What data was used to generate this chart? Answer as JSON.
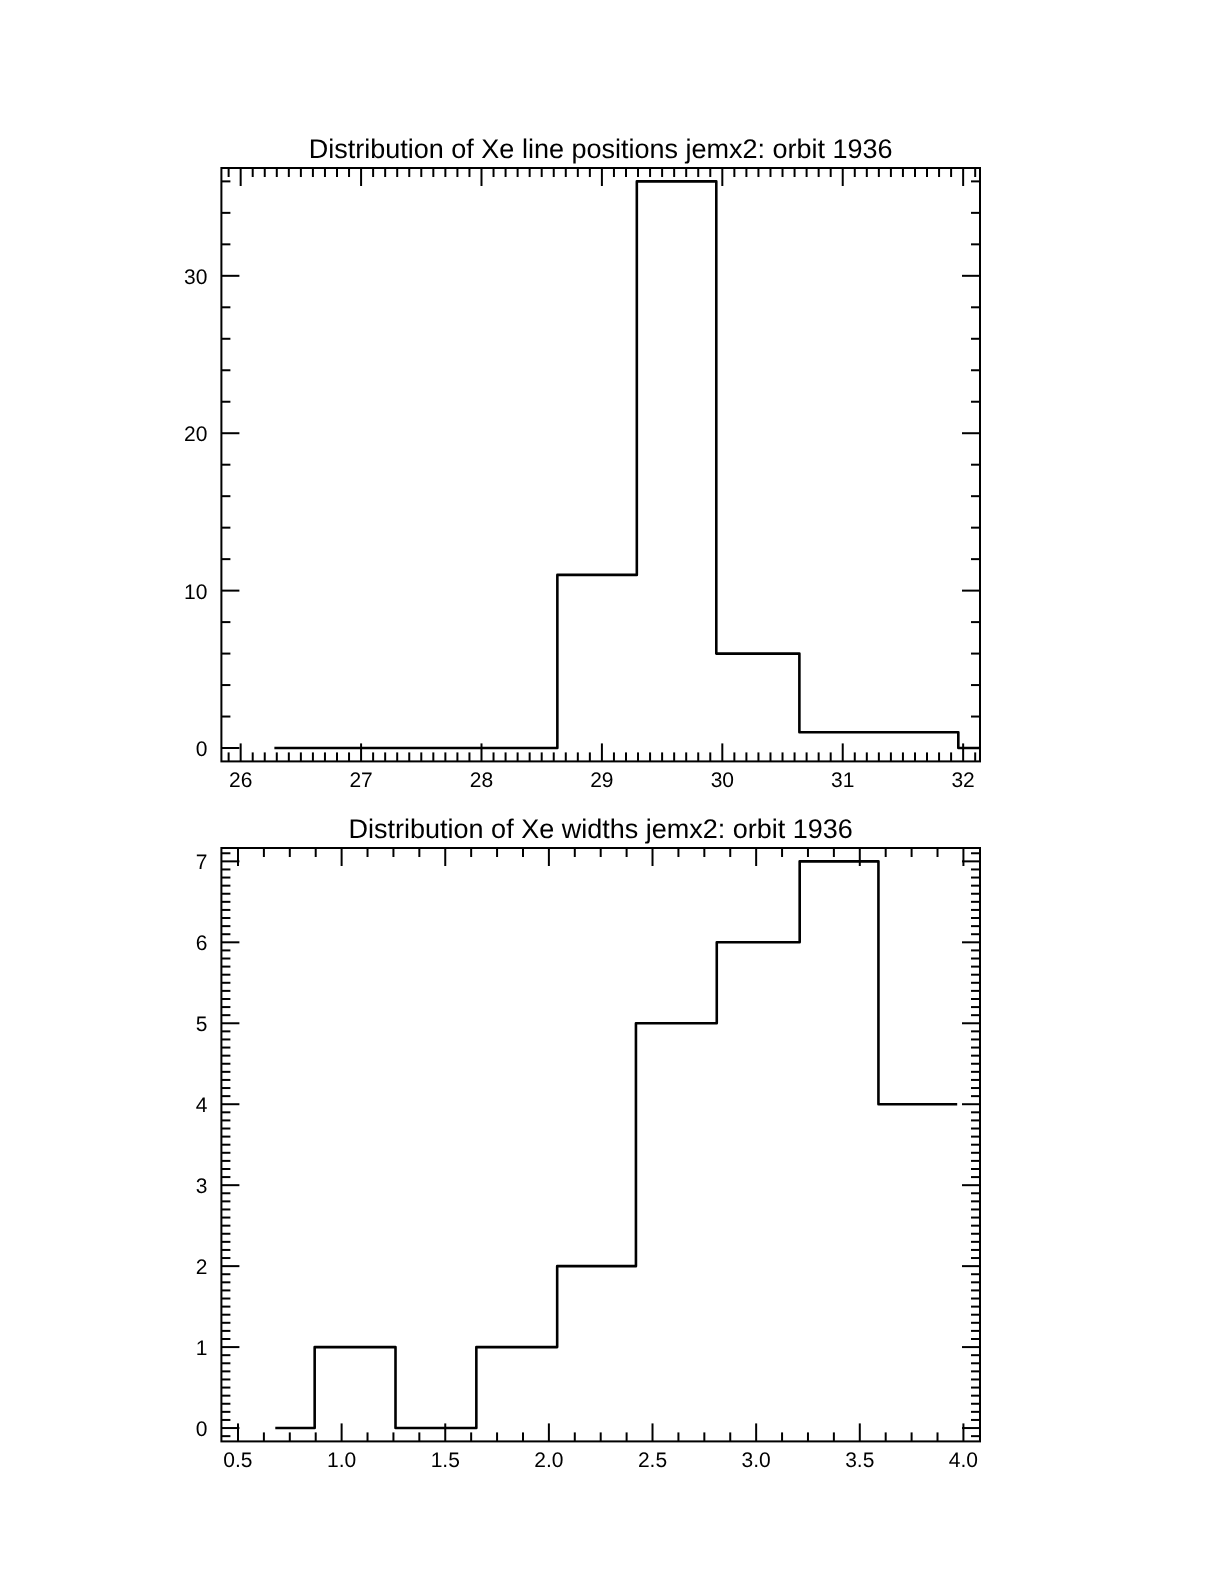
{
  "chart_data": [
    {
      "type": "step",
      "title": "Distribution of Xe line positions jemx2: orbit 1936",
      "color": "#000000",
      "x": [
        26.28,
        28.63,
        29.29,
        29.95,
        30.64,
        31.96,
        32.14
      ],
      "values": [
        0,
        11,
        36,
        6,
        1,
        0,
        0
      ],
      "xlim": [
        25.84,
        32.14
      ],
      "xticks": [
        {
          "value": 25.9,
          "label": null
        },
        26,
        {
          "value": 26.1,
          "label": null
        },
        {
          "value": 26.2,
          "label": null
        },
        {
          "value": 26.3,
          "label": null
        },
        {
          "value": 26.4,
          "label": null
        },
        {
          "value": 26.5,
          "label": null
        },
        {
          "value": 26.6,
          "label": null
        },
        {
          "value": 26.7,
          "label": null
        },
        {
          "value": 26.8,
          "label": null
        },
        {
          "value": 26.9,
          "label": null
        },
        27,
        {
          "value": 27.1,
          "label": null
        },
        {
          "value": 27.2,
          "label": null
        },
        {
          "value": 27.3,
          "label": null
        },
        {
          "value": 27.4,
          "label": null
        },
        {
          "value": 27.5,
          "label": null
        },
        {
          "value": 27.6,
          "label": null
        },
        {
          "value": 27.7,
          "label": null
        },
        {
          "value": 27.8,
          "label": null
        },
        {
          "value": 27.9,
          "label": null
        },
        28,
        {
          "value": 28.1,
          "label": null
        },
        {
          "value": 28.2,
          "label": null
        },
        {
          "value": 28.3,
          "label": null
        },
        {
          "value": 28.4,
          "label": null
        },
        {
          "value": 28.5,
          "label": null
        },
        {
          "value": 28.6,
          "label": null
        },
        {
          "value": 28.7,
          "label": null
        },
        {
          "value": 28.8,
          "label": null
        },
        {
          "value": 28.9,
          "label": null
        },
        29,
        {
          "value": 29.1,
          "label": null
        },
        {
          "value": 29.2,
          "label": null
        },
        {
          "value": 29.3,
          "label": null
        },
        {
          "value": 29.4,
          "label": null
        },
        {
          "value": 29.5,
          "label": null
        },
        {
          "value": 29.6,
          "label": null
        },
        {
          "value": 29.7,
          "label": null
        },
        {
          "value": 29.8,
          "label": null
        },
        {
          "value": 29.9,
          "label": null
        },
        30,
        {
          "value": 30.1,
          "label": null
        },
        {
          "value": 30.2,
          "label": null
        },
        {
          "value": 30.3,
          "label": null
        },
        {
          "value": 30.4,
          "label": null
        },
        {
          "value": 30.5,
          "label": null
        },
        {
          "value": 30.6,
          "label": null
        },
        {
          "value": 30.7,
          "label": null
        },
        {
          "value": 30.8,
          "label": null
        },
        {
          "value": 30.9,
          "label": null
        },
        31,
        {
          "value": 31.1,
          "label": null
        },
        {
          "value": 31.2,
          "label": null
        },
        {
          "value": 31.3,
          "label": null
        },
        {
          "value": 31.4,
          "label": null
        },
        {
          "value": 31.5,
          "label": null
        },
        {
          "value": 31.6,
          "label": null
        },
        {
          "value": 31.7,
          "label": null
        },
        {
          "value": 31.8,
          "label": null
        },
        {
          "value": 31.9,
          "label": null
        },
        32,
        {
          "value": 32.1,
          "label": null
        }
      ],
      "ylim": [
        -0.85,
        36.85
      ],
      "yticks": [
        0,
        {
          "value": 2,
          "label": null
        },
        {
          "value": 4,
          "label": null
        },
        {
          "value": 6,
          "label": null
        },
        {
          "value": 8,
          "label": null
        },
        10,
        {
          "value": 12,
          "label": null
        },
        {
          "value": 14,
          "label": null
        },
        {
          "value": 16,
          "label": null
        },
        {
          "value": 18,
          "label": null
        },
        20,
        {
          "value": 22,
          "label": null
        },
        {
          "value": 24,
          "label": null
        },
        {
          "value": 26,
          "label": null
        },
        {
          "value": 28,
          "label": null
        },
        30,
        {
          "value": 32,
          "label": null
        },
        {
          "value": 34,
          "label": null
        },
        {
          "value": 36,
          "label": null
        }
      ]
    },
    {
      "type": "step",
      "title": "Distribution of Xe widths jemx2: orbit 1936",
      "color": "#000000",
      "x": [
        0.68,
        0.87,
        1.26,
        1.65,
        2.04,
        2.42,
        2.81,
        3.21,
        3.59,
        3.97
      ],
      "values": [
        0,
        1,
        0,
        1,
        2,
        5,
        6,
        7,
        4,
        4
      ],
      "xlim": [
        0.42,
        4.08
      ],
      "xticks": [
        0.5,
        {
          "value": 0.625,
          "label": null
        },
        {
          "value": 0.75,
          "label": null
        },
        {
          "value": 0.875,
          "label": null
        },
        {
          "value": 1,
          "label": "1.0"
        },
        {
          "value": 1.125,
          "label": null
        },
        {
          "value": 1.25,
          "label": null
        },
        {
          "value": 1.375,
          "label": null
        },
        1.5,
        {
          "value": 1.625,
          "label": null
        },
        {
          "value": 1.75,
          "label": null
        },
        {
          "value": 1.875,
          "label": null
        },
        {
          "value": 2,
          "label": "2.0"
        },
        {
          "value": 2.125,
          "label": null
        },
        {
          "value": 2.25,
          "label": null
        },
        {
          "value": 2.375,
          "label": null
        },
        2.5,
        {
          "value": 2.625,
          "label": null
        },
        {
          "value": 2.75,
          "label": null
        },
        {
          "value": 2.875,
          "label": null
        },
        {
          "value": 3,
          "label": "3.0"
        },
        {
          "value": 3.125,
          "label": null
        },
        {
          "value": 3.25,
          "label": null
        },
        {
          "value": 3.375,
          "label": null
        },
        3.5,
        {
          "value": 3.625,
          "label": null
        },
        {
          "value": 3.75,
          "label": null
        },
        {
          "value": 3.875,
          "label": null
        },
        {
          "value": 4,
          "label": "4.0"
        }
      ],
      "ylim": [
        -0.165,
        7.165
      ],
      "yticks": [
        {
          "value": -0.1,
          "label": null
        },
        0,
        {
          "value": 0.1,
          "label": null
        },
        {
          "value": 0.2,
          "label": null
        },
        {
          "value": 0.3,
          "label": null
        },
        {
          "value": 0.4,
          "label": null
        },
        {
          "value": 0.5,
          "label": null
        },
        {
          "value": 0.6,
          "label": null
        },
        {
          "value": 0.7,
          "label": null
        },
        {
          "value": 0.8,
          "label": null
        },
        {
          "value": 0.9,
          "label": null
        },
        1,
        {
          "value": 1.1,
          "label": null
        },
        {
          "value": 1.2,
          "label": null
        },
        {
          "value": 1.3,
          "label": null
        },
        {
          "value": 1.4,
          "label": null
        },
        {
          "value": 1.5,
          "label": null
        },
        {
          "value": 1.6,
          "label": null
        },
        {
          "value": 1.7,
          "label": null
        },
        {
          "value": 1.8,
          "label": null
        },
        {
          "value": 1.9,
          "label": null
        },
        2,
        {
          "value": 2.1,
          "label": null
        },
        {
          "value": 2.2,
          "label": null
        },
        {
          "value": 2.3,
          "label": null
        },
        {
          "value": 2.4,
          "label": null
        },
        {
          "value": 2.5,
          "label": null
        },
        {
          "value": 2.6,
          "label": null
        },
        {
          "value": 2.7,
          "label": null
        },
        {
          "value": 2.8,
          "label": null
        },
        {
          "value": 2.9,
          "label": null
        },
        3,
        {
          "value": 3.1,
          "label": null
        },
        {
          "value": 3.2,
          "label": null
        },
        {
          "value": 3.3,
          "label": null
        },
        {
          "value": 3.4,
          "label": null
        },
        {
          "value": 3.5,
          "label": null
        },
        {
          "value": 3.6,
          "label": null
        },
        {
          "value": 3.7,
          "label": null
        },
        {
          "value": 3.8,
          "label": null
        },
        {
          "value": 3.9,
          "label": null
        },
        4,
        {
          "value": 4.1,
          "label": null
        },
        {
          "value": 4.2,
          "label": null
        },
        {
          "value": 4.3,
          "label": null
        },
        {
          "value": 4.4,
          "label": null
        },
        {
          "value": 4.5,
          "label": null
        },
        {
          "value": 4.6,
          "label": null
        },
        {
          "value": 4.7,
          "label": null
        },
        {
          "value": 4.8,
          "label": null
        },
        {
          "value": 4.9,
          "label": null
        },
        5,
        {
          "value": 5.1,
          "label": null
        },
        {
          "value": 5.2,
          "label": null
        },
        {
          "value": 5.3,
          "label": null
        },
        {
          "value": 5.4,
          "label": null
        },
        {
          "value": 5.5,
          "label": null
        },
        {
          "value": 5.6,
          "label": null
        },
        {
          "value": 5.7,
          "label": null
        },
        {
          "value": 5.8,
          "label": null
        },
        {
          "value": 5.9,
          "label": null
        },
        6,
        {
          "value": 6.1,
          "label": null
        },
        {
          "value": 6.2,
          "label": null
        },
        {
          "value": 6.3,
          "label": null
        },
        {
          "value": 6.4,
          "label": null
        },
        {
          "value": 6.5,
          "label": null
        },
        {
          "value": 6.6,
          "label": null
        },
        {
          "value": 6.7,
          "label": null
        },
        {
          "value": 6.8,
          "label": null
        },
        {
          "value": 6.9,
          "label": null
        },
        7,
        {
          "value": 7.1,
          "label": null
        }
      ]
    }
  ]
}
